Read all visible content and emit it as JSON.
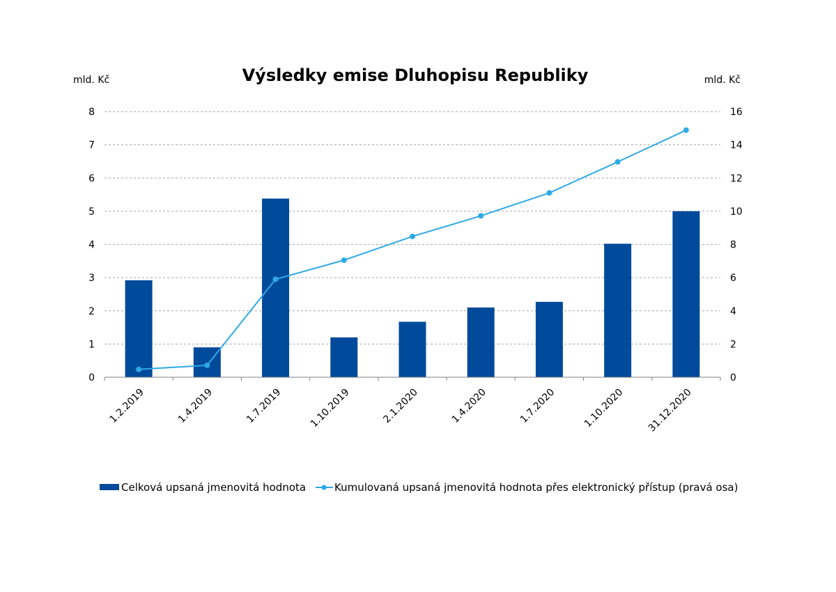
{
  "chart_data": {
    "type": "bar",
    "title": "Výsledky emise Dluhopisu Republiky",
    "ylabel_left": "mld. Kč",
    "ylabel_right": "mld. Kč",
    "categories": [
      "1.2.2019",
      "1.4.2019",
      "1.7.2019",
      "1.10.2019",
      "2.1.2020",
      "1.4.2020",
      "1.7.2020",
      "1.10.2020",
      "31.12.2020"
    ],
    "ylim_left": [
      0,
      8
    ],
    "ylim_right": [
      0,
      16
    ],
    "yticks_left": [
      "0",
      "1",
      "2",
      "3",
      "4",
      "5",
      "6",
      "7",
      "8"
    ],
    "yticks_right": [
      "0",
      "2",
      "4",
      "6",
      "8",
      "10",
      "12",
      "14",
      "16"
    ],
    "grid": true,
    "legend_position": "bottom",
    "series": [
      {
        "name": "Celková upsaná jmenovitá hodnota",
        "type": "bar",
        "axis": "left",
        "color": "#004a9b",
        "values": [
          2.92,
          0.9,
          5.38,
          1.2,
          1.67,
          2.1,
          2.27,
          4.02,
          5.0
        ]
      },
      {
        "name": "Kumulovaná upsaná jmenovitá hodnota přes elektronický přístup (pravá osa)",
        "type": "line",
        "axis": "right",
        "color": "#2ea9e6",
        "values": [
          0.47,
          0.72,
          5.9,
          7.05,
          8.48,
          9.72,
          11.1,
          12.97,
          14.88
        ]
      }
    ]
  }
}
